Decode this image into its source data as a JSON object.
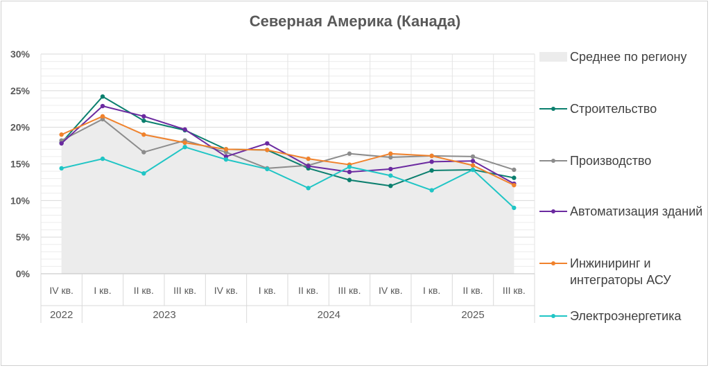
{
  "chart_data": {
    "type": "line",
    "title": "Северная Америка (Канада)",
    "ylim": [
      0,
      30
    ],
    "yticks": [
      "0%",
      "5%",
      "10%",
      "15%",
      "20%",
      "25%",
      "30%"
    ],
    "categories": [
      "IV кв.",
      "I кв.",
      "II кв.",
      "III кв.",
      "IV кв.",
      "I кв.",
      "II кв.",
      "III кв.",
      "IV кв.",
      "I кв.",
      "II кв.",
      "III кв."
    ],
    "years": [
      {
        "label": "2022",
        "span": 1
      },
      {
        "label": "2023",
        "span": 4
      },
      {
        "label": "2024",
        "span": 4
      },
      {
        "label": "2025",
        "span": 3
      }
    ],
    "area": {
      "name": "Среднее по региону",
      "color": "#ececec",
      "values": [
        18.0,
        21.5,
        19.2,
        18.0,
        17.0,
        16.9,
        15.8,
        14.9,
        16.4,
        16.1,
        15.0,
        12.2
      ]
    },
    "series": [
      {
        "name": "Строительство",
        "color": "#0b7f6e",
        "values": [
          17.9,
          24.2,
          20.9,
          19.6,
          17.0,
          16.9,
          14.4,
          12.8,
          12.0,
          14.1,
          14.2,
          13.1
        ]
      },
      {
        "name": "Производство",
        "color": "#8c8c8c",
        "values": [
          18.2,
          21.1,
          16.6,
          18.2,
          16.6,
          14.4,
          14.8,
          16.4,
          15.9,
          16.1,
          16.0,
          14.2
        ]
      },
      {
        "name": "Автоматизация зданий",
        "color": "#6b2aa0",
        "values": [
          17.8,
          22.9,
          21.5,
          19.7,
          16.0,
          17.8,
          14.7,
          13.9,
          14.3,
          15.3,
          15.4,
          12.3
        ]
      },
      {
        "name": "Инжиниринг и интеграторы АСУ",
        "color": "#f0822c",
        "values": [
          19.0,
          21.5,
          19.0,
          17.9,
          17.0,
          16.9,
          15.7,
          14.9,
          16.4,
          16.1,
          14.8,
          12.1
        ]
      },
      {
        "name": "Электроэнергетика",
        "color": "#20c5c5",
        "values": [
          14.4,
          15.7,
          13.7,
          17.3,
          15.6,
          14.3,
          11.7,
          14.6,
          13.4,
          11.4,
          14.2,
          9.0
        ]
      }
    ],
    "grid": true,
    "legend_position": "right"
  }
}
